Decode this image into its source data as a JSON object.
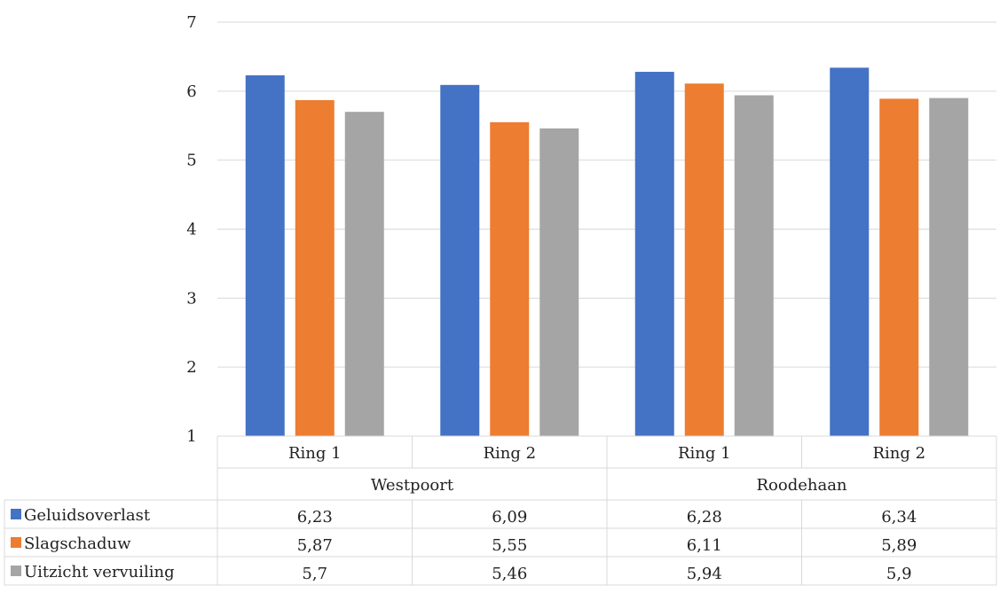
{
  "chart_data": {
    "type": "bar",
    "ylim": [
      1,
      7
    ],
    "yticks": [
      1,
      2,
      3,
      4,
      5,
      6,
      7
    ],
    "grid": true,
    "legend_position": "data-table",
    "categories": [
      "Ring 1",
      "Ring 2",
      "Ring 1",
      "Ring 2"
    ],
    "groups": [
      {
        "label": "Westpoort",
        "span": 2
      },
      {
        "label": "Roodehaan",
        "span": 2
      }
    ],
    "series": [
      {
        "name": "Geluidsoverlast",
        "color": "#4472C4",
        "values": [
          6.23,
          6.09,
          6.28,
          6.34
        ],
        "labels": [
          "6,23",
          "6,09",
          "6,28",
          "6,34"
        ]
      },
      {
        "name": "Slagschaduw",
        "color": "#ED7D31",
        "values": [
          5.87,
          5.55,
          6.11,
          5.89
        ],
        "labels": [
          "5,87",
          "5,55",
          "6,11",
          "5,89"
        ]
      },
      {
        "name": "Uitzicht vervuiling",
        "color": "#A5A5A5",
        "values": [
          5.7,
          5.46,
          5.94,
          5.9
        ],
        "labels": [
          "5,7",
          "5,46",
          "5,94",
          "5,9"
        ]
      }
    ]
  }
}
